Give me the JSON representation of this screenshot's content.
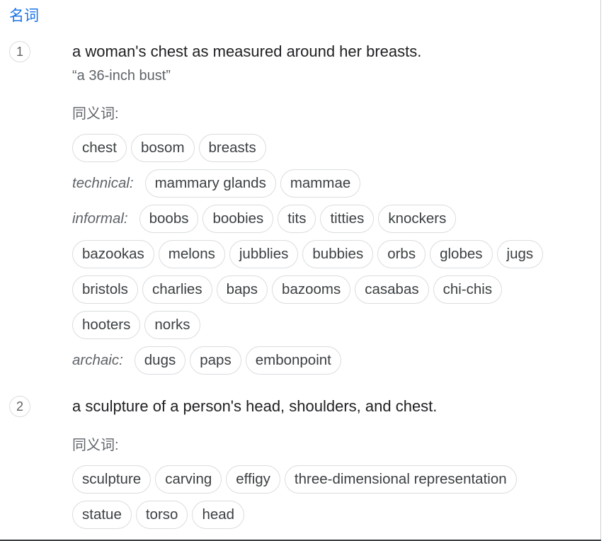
{
  "pos": "名词",
  "synonyms_title": "同义词:",
  "senses": [
    {
      "number": "1",
      "definition": "a woman's chest as measured around her breasts.",
      "example": "“a 36-inch bust”",
      "rows": [
        {
          "label": "",
          "chips": [
            "chest",
            "bosom",
            "breasts"
          ]
        },
        {
          "label": "technical:",
          "chips": [
            "mammary glands",
            "mammae"
          ]
        },
        {
          "label": "informal:",
          "chips": [
            "boobs",
            "boobies",
            "tits",
            "titties",
            "knockers"
          ]
        },
        {
          "label": "",
          "chips": [
            "bazookas",
            "melons",
            "jubblies",
            "bubbies",
            "orbs",
            "globes",
            "jugs"
          ]
        },
        {
          "label": "",
          "chips": [
            "bristols",
            "charlies",
            "baps",
            "bazooms",
            "casabas",
            "chi-chis"
          ]
        },
        {
          "label": "",
          "chips": [
            "hooters",
            "norks"
          ]
        },
        {
          "label": "archaic:",
          "chips": [
            "dugs",
            "paps",
            "embonpoint"
          ]
        }
      ]
    },
    {
      "number": "2",
      "definition": "a sculpture of a person's head, shoulders, and chest.",
      "rows": [
        {
          "label": "",
          "chips": [
            "sculpture",
            "carving",
            "effigy",
            "three-dimensional representation"
          ]
        },
        {
          "label": "",
          "chips": [
            "statue",
            "torso",
            "head"
          ]
        }
      ]
    }
  ]
}
